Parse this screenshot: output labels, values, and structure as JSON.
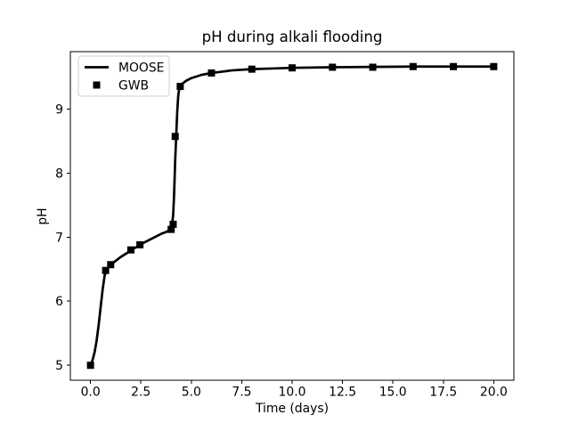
{
  "figure": {
    "background": "#ffffff",
    "foreground": "#000000"
  },
  "chart_data": {
    "type": "line",
    "title": "pH during alkali flooding",
    "xlabel": "Time (days)",
    "ylabel": "pH",
    "xlim": [
      -1,
      21
    ],
    "ylim": [
      4.767,
      9.893
    ],
    "grid": false,
    "xticks": {
      "values": [
        0,
        2.5,
        5,
        7.5,
        10,
        12.5,
        15,
        17.5,
        20
      ],
      "labels": [
        "0.0",
        "2.5",
        "5.0",
        "7.5",
        "10.0",
        "12.5",
        "15.0",
        "17.5",
        "20.0"
      ]
    },
    "yticks": {
      "values": [
        5,
        6,
        7,
        8,
        9
      ],
      "labels": [
        "5",
        "6",
        "7",
        "8",
        "9"
      ]
    },
    "legend": {
      "position": "upper left",
      "entries": [
        {
          "label": "MOOSE",
          "type": "line"
        },
        {
          "label": "GWB",
          "type": "square-marker"
        }
      ]
    },
    "series": [
      {
        "name": "MOOSE",
        "type": "line",
        "color": "#000000",
        "linewidth": 2.7,
        "x": [
          0,
          0.1,
          0.2,
          0.3,
          0.4,
          0.5,
          0.6,
          0.7,
          0.8,
          0.9,
          1.0,
          1.25,
          1.5,
          1.75,
          2.0,
          2.25,
          2.5,
          2.75,
          3.0,
          3.25,
          3.5,
          3.75,
          4.0,
          4.05,
          4.1,
          4.15,
          4.2,
          4.25,
          4.3,
          4.35,
          4.4,
          4.5,
          4.75,
          5.0,
          5.5,
          6.0,
          6.5,
          7.0,
          8.0,
          9.0,
          10.0,
          12.0,
          14.0,
          16.0,
          18.0,
          20.0
        ],
        "y": [
          5.0,
          5.08,
          5.2,
          5.38,
          5.62,
          5.9,
          6.18,
          6.4,
          6.49,
          6.54,
          6.57,
          6.63,
          6.69,
          6.74,
          6.79,
          6.84,
          6.89,
          6.93,
          6.97,
          7.01,
          7.05,
          7.08,
          7.12,
          7.2,
          7.35,
          7.7,
          8.2,
          8.57,
          8.95,
          9.2,
          9.32,
          9.38,
          9.44,
          9.48,
          9.53,
          9.56,
          9.58,
          9.6,
          9.62,
          9.63,
          9.64,
          9.65,
          9.655,
          9.66,
          9.66,
          9.66
        ]
      },
      {
        "name": "GWB",
        "type": "scatter",
        "color": "#000000",
        "marker": "square",
        "markersize": 8,
        "x": [
          0,
          0.75,
          1.0,
          2.0,
          2.45,
          4.0,
          4.1,
          4.2,
          4.45,
          6.0,
          8.0,
          10.0,
          12.0,
          14.0,
          16.0,
          18.0,
          20.0
        ],
        "y": [
          5.0,
          6.48,
          6.57,
          6.8,
          6.88,
          7.12,
          7.2,
          8.57,
          9.35,
          9.56,
          9.62,
          9.64,
          9.65,
          9.65,
          9.66,
          9.66,
          9.66
        ]
      }
    ]
  }
}
